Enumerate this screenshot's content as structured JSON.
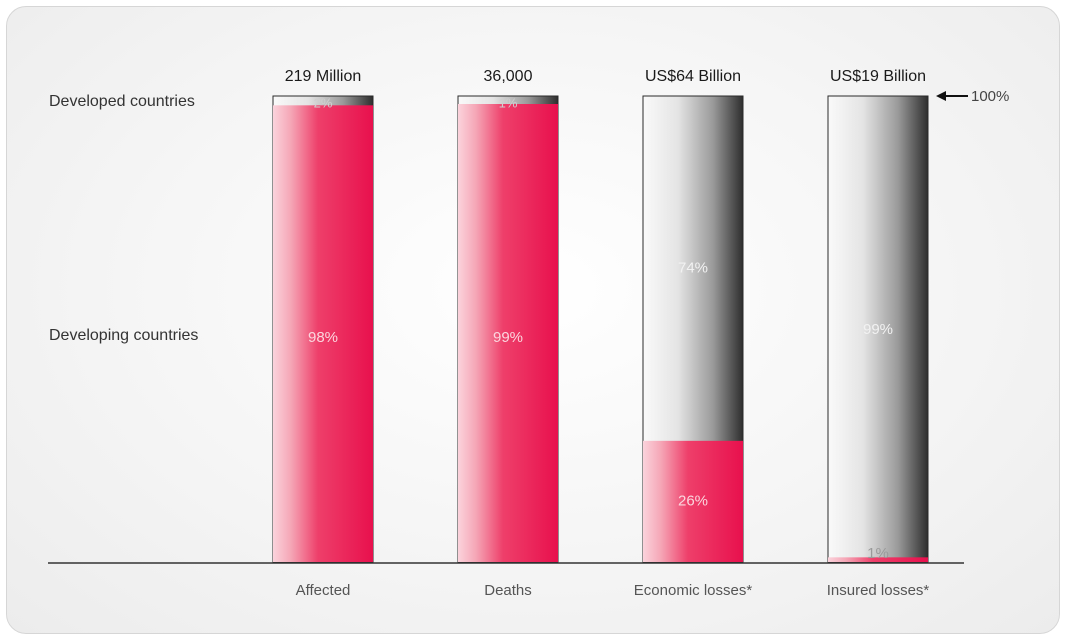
{
  "chart_data": {
    "type": "bar",
    "stacked": true,
    "normalized": true,
    "categories": [
      "Affected",
      "Deaths",
      "Economic losses*",
      "Insured losses*"
    ],
    "totals": [
      "219 Million",
      "36,000",
      "US$64 Billion",
      "US$19 Billion"
    ],
    "series": [
      {
        "name": "Developing countries",
        "values": [
          98,
          99,
          26,
          1
        ],
        "labels": [
          "98%",
          "99%",
          "26%",
          "1%"
        ],
        "color": "#e8124f"
      },
      {
        "name": "Developed countries",
        "values": [
          2,
          1,
          74,
          99
        ],
        "labels": [
          "2%",
          "1%",
          "74%",
          "99%"
        ],
        "color": "#3a3a3a"
      }
    ],
    "row_labels": {
      "developed": "Developed countries",
      "developing": "Developing countries"
    },
    "reference_label": "100%",
    "ylim": [
      0,
      100
    ],
    "grid": false,
    "legend": "left"
  }
}
